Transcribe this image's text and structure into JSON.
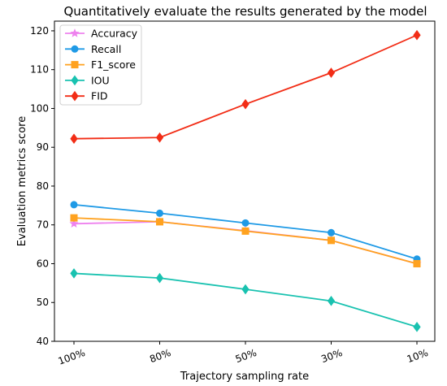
{
  "chart_data": {
    "type": "line",
    "title": "Quantitatively evaluate the results generated by the model",
    "xlabel": "Trajectory sampling rate",
    "ylabel": "Evaluation metrics score",
    "categories": [
      "100%",
      "80%",
      "50%",
      "30%",
      "10%"
    ],
    "ylim": [
      40,
      122.5
    ],
    "yticks": [
      40,
      50,
      60,
      70,
      80,
      90,
      100,
      110,
      120
    ],
    "grid": false,
    "legend_position": "top-left",
    "series": [
      {
        "name": "Accuracy",
        "color": "#ee82ee",
        "marker": "star",
        "values": [
          70.3,
          70.8,
          68.5,
          66.0,
          60.0
        ]
      },
      {
        "name": "Recall",
        "color": "#1f9ae6",
        "marker": "circle",
        "values": [
          75.2,
          73.0,
          70.5,
          68.0,
          61.2
        ]
      },
      {
        "name": "F1_score",
        "color": "#ffa21f",
        "marker": "square",
        "values": [
          71.8,
          70.8,
          68.4,
          66.0,
          60.0
        ]
      },
      {
        "name": "IOU",
        "color": "#19c2b0",
        "marker": "diamond",
        "values": [
          57.5,
          56.3,
          53.4,
          50.4,
          43.7
        ]
      },
      {
        "name": "FID",
        "color": "#f22d16",
        "marker": "diamond",
        "values": [
          92.2,
          92.5,
          101.1,
          109.2,
          118.9
        ]
      }
    ]
  }
}
